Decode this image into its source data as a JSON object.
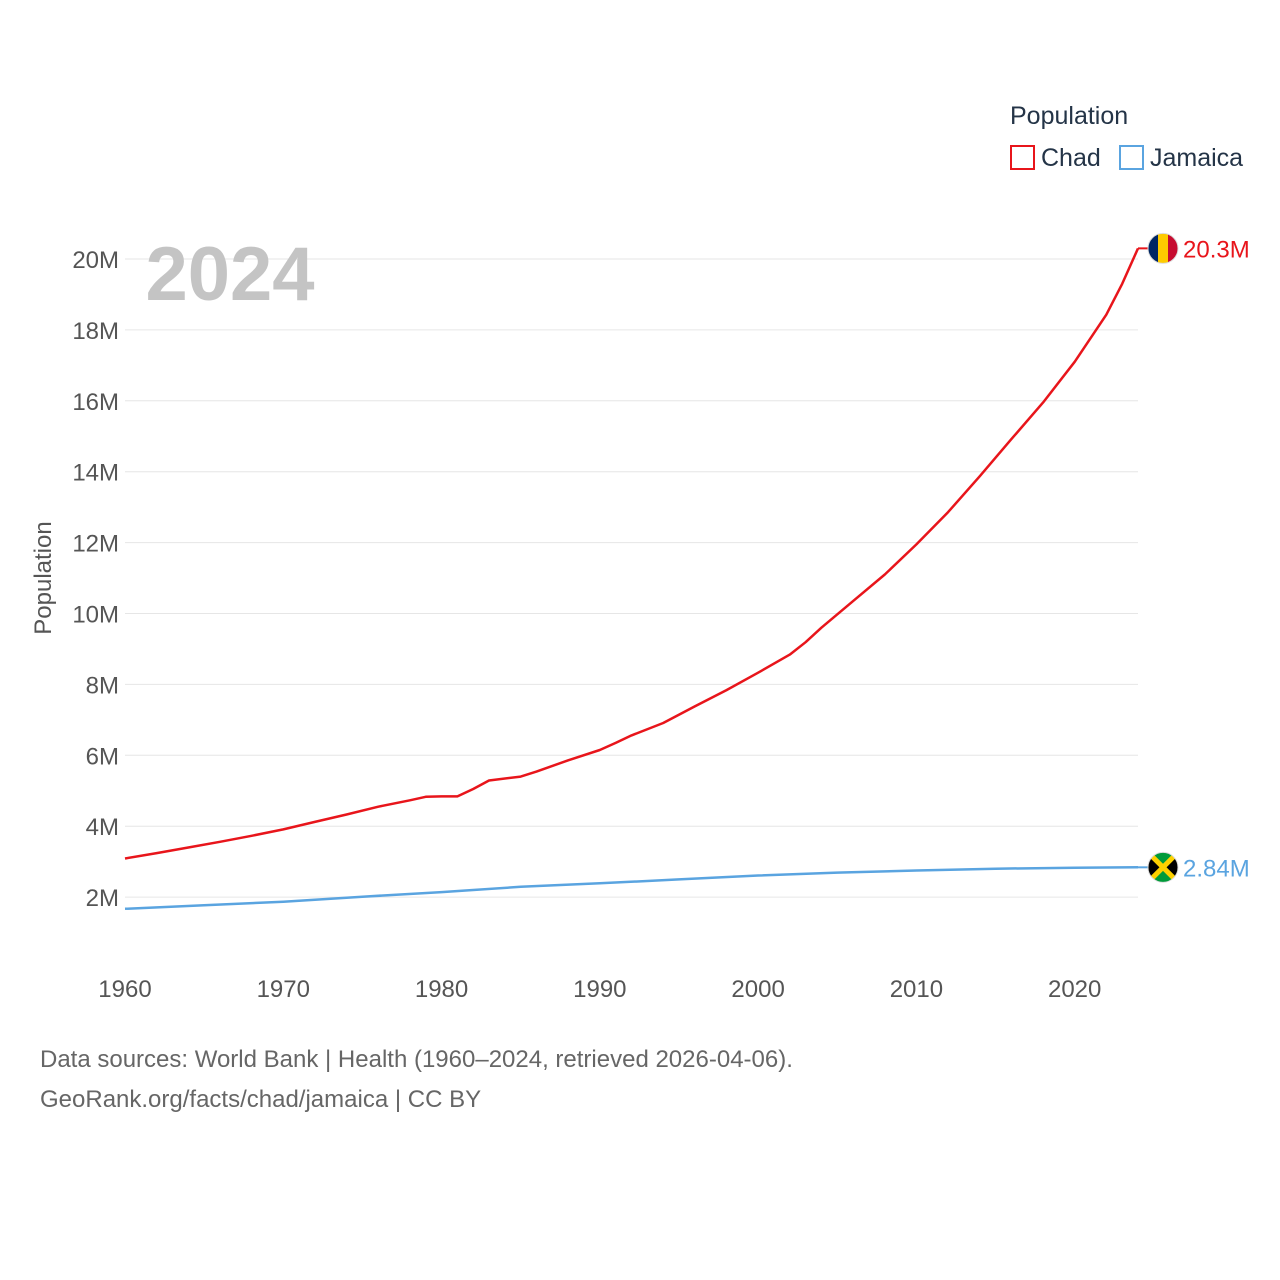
{
  "chart_data": {
    "type": "line",
    "title": "Population",
    "ylabel": "Population",
    "xlabel": "",
    "current_year": "2024",
    "xlim": [
      1960,
      2024
    ],
    "ylim": [
      0,
      20000000
    ],
    "x_ticks": [
      1960,
      1970,
      1980,
      1990,
      2000,
      2010,
      2020
    ],
    "x_tick_labels": [
      "1960",
      "1970",
      "1980",
      "1990",
      "2000",
      "2010",
      "2020"
    ],
    "y_ticks": [
      2000000,
      4000000,
      6000000,
      8000000,
      10000000,
      12000000,
      14000000,
      16000000,
      18000000,
      20000000
    ],
    "y_tick_labels": [
      "2M",
      "4M",
      "6M",
      "8M",
      "10M",
      "12M",
      "14M",
      "16M",
      "18M",
      "20M"
    ],
    "legend_title": "Population",
    "legend_position": "top-right",
    "grid": true,
    "series": [
      {
        "name": "Chad",
        "color": "#e8151b",
        "end_label": "20.3M",
        "flag_icon": "chad-flag-icon",
        "x": [
          1960,
          1962,
          1964,
          1966,
          1968,
          1970,
          1972,
          1974,
          1976,
          1978,
          1979,
          1980,
          1981,
          1982,
          1983,
          1985,
          1986,
          1988,
          1990,
          1991,
          1992,
          1994,
          1996,
          1998,
          2000,
          2002,
          2003,
          2004,
          2006,
          2008,
          2010,
          2012,
          2014,
          2016,
          2018,
          2020,
          2022,
          2023,
          2024
        ],
        "values": [
          3090000,
          3240000,
          3400000,
          3560000,
          3730000,
          3910000,
          4120000,
          4330000,
          4550000,
          4730000,
          4830000,
          4840000,
          4840000,
          5050000,
          5290000,
          5400000,
          5540000,
          5860000,
          6150000,
          6350000,
          6560000,
          6910000,
          7380000,
          7840000,
          8330000,
          8840000,
          9190000,
          9600000,
          10350000,
          11100000,
          11950000,
          12860000,
          13870000,
          14920000,
          15950000,
          17100000,
          18430000,
          19300000,
          20300000
        ]
      },
      {
        "name": "Jamaica",
        "color": "#5aa4e0",
        "end_label": "2.84M",
        "flag_icon": "jamaica-flag-icon",
        "x": [
          1960,
          1965,
          1970,
          1975,
          1980,
          1985,
          1990,
          1995,
          2000,
          2005,
          2010,
          2015,
          2020,
          2024
        ],
        "values": [
          1670000,
          1770000,
          1870000,
          2010000,
          2140000,
          2290000,
          2390000,
          2500000,
          2610000,
          2690000,
          2750000,
          2800000,
          2830000,
          2840000
        ]
      }
    ]
  },
  "footer": {
    "sources": "Data sources: World Bank | Health (1960–2024, retrieved 2026-04-06).",
    "credit": "GeoRank.org/facts/chad/jamaica | CC BY"
  }
}
